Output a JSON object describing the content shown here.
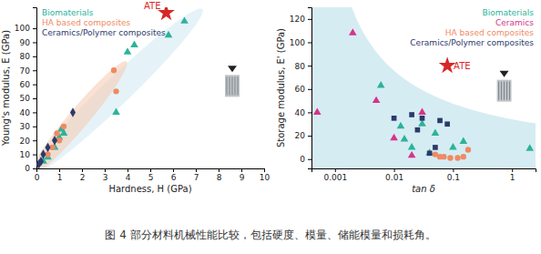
{
  "chart_data": [
    {
      "type": "scatter",
      "xlabel": "Hardness, H (GPa)",
      "ylabel": "Young's modulus, E (GPa)",
      "xlim": [
        0,
        10
      ],
      "ylim": [
        0,
        115
      ],
      "xticks": [
        0,
        1,
        2,
        3,
        4,
        5,
        6,
        7,
        8,
        9,
        10
      ],
      "yticks": [
        0,
        10,
        20,
        30,
        40,
        50,
        60,
        70,
        80,
        90,
        100
      ],
      "legend": "upper left",
      "series": [
        {
          "name": "Biomaterials",
          "color": "#2bb39a",
          "marker": "triangle",
          "x": [
            0.3,
            0.5,
            0.8,
            1.0,
            1.1,
            1.2,
            3.5,
            4.0,
            4.3,
            5.8,
            6.5
          ],
          "values": [
            5,
            8,
            15,
            22,
            28,
            25,
            40,
            83,
            88,
            95,
            105
          ]
        },
        {
          "name": "HA based composites",
          "color": "#ef8a62",
          "marker": "circle",
          "x": [
            0.5,
            0.7,
            0.9,
            1.0,
            1.2,
            3.4,
            3.5
          ],
          "values": [
            10,
            15,
            25,
            20,
            30,
            70,
            55
          ]
        },
        {
          "name": "Ceramics/Polymer composites",
          "color": "#2b3a6b",
          "marker": "diamond",
          "x": [
            0.1,
            0.2,
            0.3,
            0.5,
            0.8,
            1.6
          ],
          "values": [
            3,
            5,
            10,
            15,
            20,
            40
          ]
        },
        {
          "name": "ATE",
          "color": "#d62728",
          "marker": "star",
          "x": [
            5.7
          ],
          "values": [
            111
          ]
        }
      ]
    },
    {
      "type": "scatter",
      "xlabel": "tan δ",
      "ylabel": "Storage modulus, E' (GPa)",
      "log": "x",
      "xlim": [
        0.0004,
        2.5
      ],
      "ylim": [
        -8,
        130
      ],
      "xticks": [
        0.001,
        0.01,
        0.1,
        1
      ],
      "yticks": [
        0,
        20,
        40,
        60,
        80,
        100,
        120
      ],
      "legend": "upper right",
      "series": [
        {
          "name": "Biomaterials",
          "color": "#2bb39a",
          "marker": "triangle",
          "x": [
            0.006,
            0.013,
            0.015,
            0.02,
            0.03,
            0.04,
            0.05,
            0.1,
            0.15,
            2.0
          ],
          "values": [
            63,
            28,
            17,
            10,
            30,
            5,
            22,
            10,
            15,
            9
          ]
        },
        {
          "name": "Ceramics",
          "color": "#d6338a",
          "marker": "triangle",
          "x": [
            0.0005,
            0.002,
            0.005,
            0.01,
            0.02,
            0.03
          ],
          "values": [
            40,
            108,
            50,
            18,
            3,
            40
          ]
        },
        {
          "name": "HA based composites",
          "color": "#ef8a62",
          "marker": "circle",
          "x": [
            0.05,
            0.06,
            0.07,
            0.09,
            0.12,
            0.15,
            0.18
          ],
          "values": [
            4,
            2,
            2,
            1,
            1,
            2,
            8
          ]
        },
        {
          "name": "Ceramics/Polymer composites",
          "color": "#2b3a6b",
          "marker": "square",
          "x": [
            0.01,
            0.02,
            0.025,
            0.03,
            0.04,
            0.05,
            0.06,
            0.08
          ],
          "values": [
            35,
            38,
            25,
            35,
            5,
            10,
            33,
            30
          ]
        },
        {
          "name": "ATE",
          "color": "#d62728",
          "marker": "star",
          "x": [
            0.08
          ],
          "values": [
            80
          ]
        }
      ]
    }
  ],
  "caption": "图 4 部分材料机械性能比较，包括硬度、模量、储能模量和损耗角。"
}
